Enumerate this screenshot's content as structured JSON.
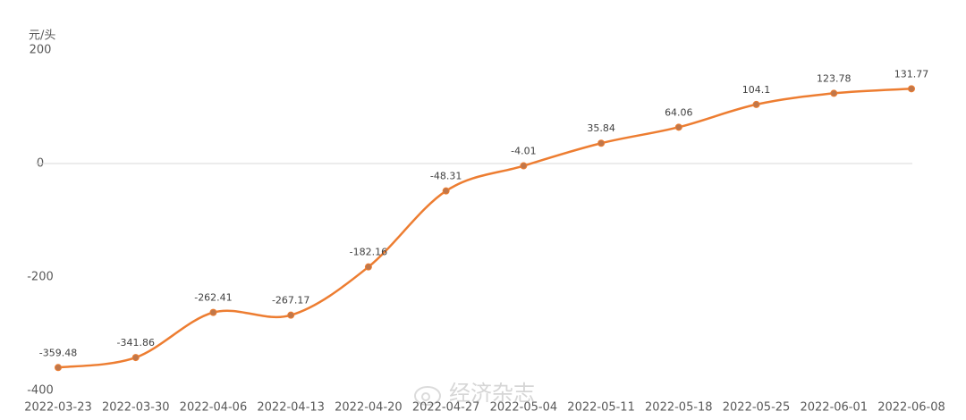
{
  "chart_data": {
    "type": "line",
    "y_unit": "元/头",
    "categories": [
      "2022-03-23",
      "2022-03-30",
      "2022-04-06",
      "2022-04-13",
      "2022-04-20",
      "2022-04-27",
      "2022-05-04",
      "2022-05-11",
      "2022-05-18",
      "2022-05-25",
      "2022-06-01",
      "2022-06-08"
    ],
    "values": [
      -359.48,
      -341.86,
      -262.41,
      -267.17,
      -182.16,
      -48.31,
      -4.01,
      35.84,
      64.06,
      104.1,
      123.78,
      131.77
    ],
    "color": "#ed7d31",
    "marker_color": "#c0774a",
    "ylim": [
      -400,
      200
    ],
    "yticks": [
      -400,
      -200,
      0,
      200
    ],
    "zero_line": true,
    "smooth": true,
    "watermark": "经济杂志"
  }
}
